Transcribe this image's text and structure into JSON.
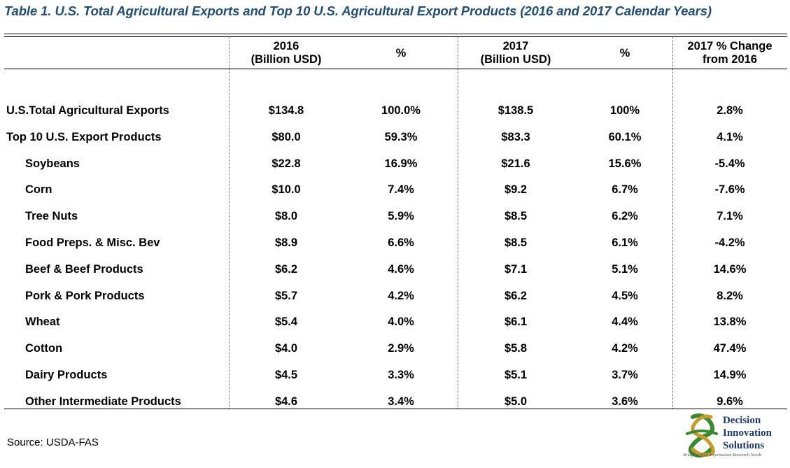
{
  "title": "Table 1. U.S. Total Agricultural Exports and Top 10 U.S. Agricultural Export Products (2016 and 2017 Calendar Years)",
  "columns": {
    "c2016_line1": "2016",
    "c2016_line2": "(Billion USD)",
    "pct1": "%",
    "c2017_line1": "2017",
    "c2017_line2": "(Billion USD)",
    "pct2": "%",
    "change_line1": "2017 % Change",
    "change_line2": "from 2016"
  },
  "rows": [
    {
      "label": "U.S.Total  Agricultural Exports",
      "v2016": "$134.8",
      "p2016": "100.0%",
      "v2017": "$138.5",
      "p2017": "100%",
      "change": "2.8%"
    },
    {
      "label": "Top 10 U.S. Export Products",
      "v2016": "$80.0",
      "p2016": "59.3%",
      "v2017": "$83.3",
      "p2017": "60.1%",
      "change": "4.1%"
    },
    {
      "label": "Soybeans",
      "v2016": "$22.8",
      "p2016": "16.9%",
      "v2017": "$21.6",
      "p2017": "15.6%",
      "change": "-5.4%"
    },
    {
      "label": "Corn",
      "v2016": "$10.0",
      "p2016": "7.4%",
      "v2017": "$9.2",
      "p2017": "6.7%",
      "change": "-7.6%"
    },
    {
      "label": "Tree Nuts",
      "v2016": "$8.0",
      "p2016": "5.9%",
      "v2017": "$8.5",
      "p2017": "6.2%",
      "change": "7.1%"
    },
    {
      "label": "Food Preps. & Misc. Bev",
      "v2016": "$8.9",
      "p2016": "6.6%",
      "v2017": "$8.5",
      "p2017": "6.1%",
      "change": "-4.2%"
    },
    {
      "label": "Beef & Beef Products",
      "v2016": "$6.2",
      "p2016": "4.6%",
      "v2017": "$7.1",
      "p2017": "5.1%",
      "change": "14.6%"
    },
    {
      "label": "Pork & Pork Products",
      "v2016": "$5.7",
      "p2016": "4.2%",
      "v2017": "$6.2",
      "p2017": "4.5%",
      "change": "8.2%"
    },
    {
      "label": "Wheat",
      "v2016": "$5.4",
      "p2016": "4.0%",
      "v2017": "$6.1",
      "p2017": "4.4%",
      "change": "13.8%"
    },
    {
      "label": "Cotton",
      "v2016": "$4.0",
      "p2016": "2.9%",
      "v2017": "$5.8",
      "p2017": "4.2%",
      "change": "47.4%"
    },
    {
      "label": "Dairy Products",
      "v2016": "$4.5",
      "p2016": "3.3%",
      "v2017": "$5.1",
      "p2017": "3.7%",
      "change": "14.9%"
    },
    {
      "label": "Other Intermediate Products",
      "v2016": "$4.6",
      "p2016": "3.4%",
      "v2017": "$5.0",
      "p2017": "3.6%",
      "change": "9.6%"
    }
  ],
  "source": "Source: USDA-FAS",
  "logo": {
    "line1": "Decision",
    "line2": "Innovation",
    "line3": "Solutions",
    "tagline": "Bridging Your Information Research Needs"
  },
  "colors": {
    "title": "#1f4e79",
    "logo_green": "#3a8a2e",
    "logo_gold": "#c89a2a",
    "logo_text": "#1b3a6b"
  }
}
